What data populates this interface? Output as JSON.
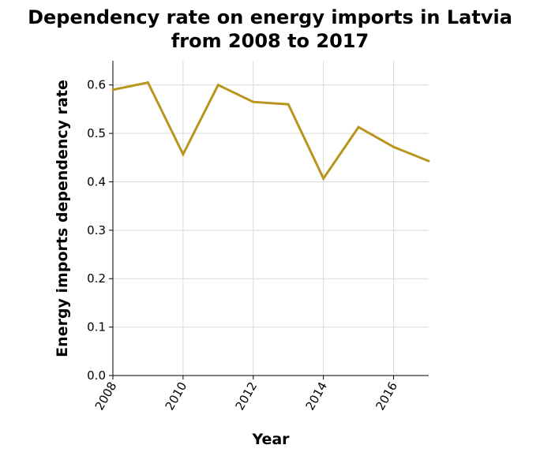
{
  "chart_data": {
    "type": "line",
    "title_line1": "Dependency rate on energy imports in Latvia",
    "title_line2": "from 2008 to 2017",
    "xlabel": "Year",
    "ylabel": "Energy imports dependency rate",
    "x": [
      2008,
      2009,
      2010,
      2011,
      2012,
      2013,
      2014,
      2015,
      2016,
      2017
    ],
    "series": [
      {
        "values": [
          0.59,
          0.605,
          0.457,
          0.6,
          0.565,
          0.56,
          0.407,
          0.513,
          0.472,
          0.443
        ]
      }
    ],
    "xlim": [
      2008,
      2017
    ],
    "ylim": [
      0,
      0.65
    ],
    "xticks": [
      2008,
      2010,
      2012,
      2014,
      2016
    ],
    "xtick_labels": [
      "2008",
      "2010",
      "2012",
      "2014",
      "2016"
    ],
    "yticks": [
      0,
      0.1,
      0.2,
      0.3,
      0.4,
      0.5,
      0.6
    ],
    "ytick_labels": [
      "0.0",
      "0.1",
      "0.2",
      "0.3",
      "0.4",
      "0.5",
      "0.6"
    ],
    "grid": true,
    "line_color": "#b8961e"
  }
}
